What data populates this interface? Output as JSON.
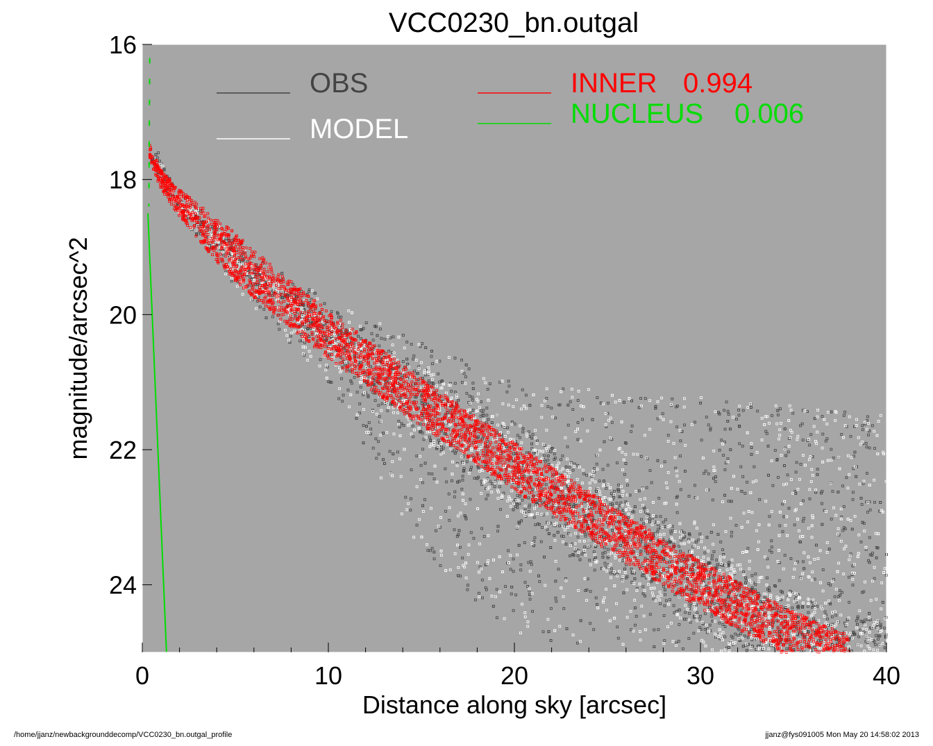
{
  "chart_data": {
    "type": "scatter",
    "title": "VCC0230_bn.outgal",
    "xlabel": "Distance along sky [arcsec]",
    "ylabel": "magnitude/arcsec^2",
    "xlim": [
      0,
      40
    ],
    "ylim": [
      25.0,
      16.0
    ],
    "y_inverted": true,
    "x_ticks": [
      "0",
      "10",
      "20",
      "30",
      "40"
    ],
    "y_ticks": [
      "16",
      "18",
      "20",
      "22",
      "24"
    ],
    "plot_background": "#a6a6a6",
    "grid": false,
    "legend": {
      "placement": "top",
      "obs_label": "OBS",
      "model_label": "MODEL",
      "inner_label": "INNER",
      "inner_value": "0.994",
      "nucleus_label": "NUCLEUS",
      "nucleus_value": "0.006"
    },
    "colors": {
      "obs": "#444444",
      "model": "#ffffff",
      "inner": "#ff0000",
      "nucleus": "#00dd00"
    },
    "series": [
      {
        "name": "OBS",
        "kind": "points",
        "spread_band": [
          [
            0.5,
            17.4,
            17.9
          ],
          [
            2,
            18.2,
            18.5
          ],
          [
            5,
            18.9,
            19.6
          ],
          [
            10,
            19.8,
            21.0
          ],
          [
            15,
            20.4,
            23.5
          ],
          [
            20,
            21.0,
            24.8
          ],
          [
            30,
            21.2,
            25.0
          ],
          [
            40,
            21.5,
            25.0
          ]
        ]
      },
      {
        "name": "MODEL",
        "kind": "points",
        "follows": "OBS"
      },
      {
        "name": "INNER",
        "kind": "band",
        "curve": [
          [
            0.4,
            17.6
          ],
          [
            1,
            18.0
          ],
          [
            2,
            18.35
          ],
          [
            4,
            18.9
          ],
          [
            6,
            19.4
          ],
          [
            8,
            19.85
          ],
          [
            10,
            20.3
          ],
          [
            15,
            21.3
          ],
          [
            20,
            22.25
          ],
          [
            25,
            23.15
          ],
          [
            30,
            24.0
          ],
          [
            35,
            24.75
          ],
          [
            38,
            25.1
          ]
        ],
        "width": 0.7
      },
      {
        "name": "NUCLEUS",
        "kind": "line",
        "points": [
          [
            0.3,
            18.5
          ],
          [
            1.3,
            25.0
          ]
        ],
        "upper_dashed": [
          [
            0.4,
            16.2
          ],
          [
            0.35,
            18.4
          ]
        ]
      }
    ]
  },
  "footer": {
    "left": "/home/jjanz/newbackgrounddecomp/VCC0230_bn.outgal_profile",
    "right": "jjanz@fys091005  Mon May 20 14:58:02 2013"
  }
}
